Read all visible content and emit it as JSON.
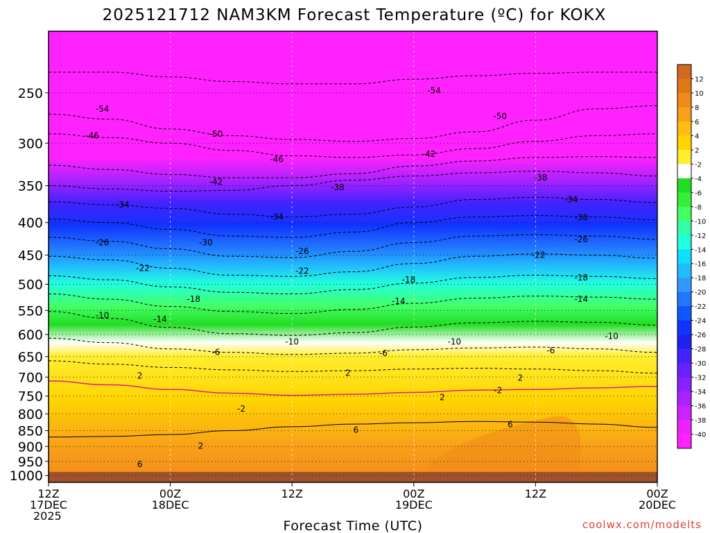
{
  "chart_data": {
    "type": "heatmap",
    "title": "2025121712 NAM3KM Forecast Temperature (ºC) for KOKX",
    "xlabel": "Forecast Time (UTC)",
    "ylabel": "",
    "y_scale": "pressure (hPa), top 200, bottom 1025",
    "x_range_hours": [
      0,
      60
    ],
    "y_ticks": [
      250,
      300,
      350,
      400,
      450,
      500,
      550,
      600,
      650,
      700,
      750,
      800,
      850,
      900,
      950,
      1000
    ],
    "x_ticks": [
      {
        "hour": 0,
        "lines": [
          "12Z",
          "17DEC",
          "2025"
        ]
      },
      {
        "hour": 12,
        "lines": [
          "00Z",
          "18DEC"
        ]
      },
      {
        "hour": 24,
        "lines": [
          "12Z"
        ]
      },
      {
        "hour": 36,
        "lines": [
          "00Z",
          "19DEC"
        ]
      },
      {
        "hour": 48,
        "lines": [
          "12Z"
        ]
      },
      {
        "hour": 60,
        "lines": [
          "00Z",
          "20DEC"
        ]
      }
    ],
    "colorbar": {
      "labels": [
        "12",
        "10",
        "8",
        "6",
        "4",
        "2",
        "-2",
        "-4",
        "-6",
        "-8",
        "-10",
        "-12",
        "-14",
        "-16",
        "-18",
        "-20",
        "-22",
        "-24",
        "-26",
        "-28",
        "-30",
        "-32",
        "-34",
        "-36",
        "-38",
        "-40"
      ],
      "colors": [
        "#d2691e",
        "#e07818",
        "#f08a1a",
        "#f8a01a",
        "#ffbc14",
        "#ffd400",
        "#ffee30",
        "#ffffff",
        "#22dd22",
        "#36ee36",
        "#44ff66",
        "#33ffaa",
        "#22ffdd",
        "#11ddff",
        "#22bbff",
        "#3399ff",
        "#2277ff",
        "#1155ff",
        "#1133ff",
        "#2222ee",
        "#4422ff",
        "#6622ff",
        "#8822ff",
        "#aa22ff",
        "#cc22ff",
        "#ee22ff",
        "#ff22ff"
      ]
    },
    "isotherms": [
      {
        "temp": -54,
        "pressures": [
          232,
          232,
          236,
          240,
          242,
          242,
          238,
          235,
          233,
          232,
          232
        ]
      },
      {
        "temp": -50,
        "pressures": [
          270,
          275,
          285,
          292,
          296,
          298,
          295,
          288,
          276,
          265,
          262
        ]
      },
      {
        "temp": -46,
        "pressures": [
          290,
          294,
          300,
          308,
          314,
          316,
          313,
          306,
          298,
          292,
          290
        ]
      },
      {
        "temp": -42,
        "pressures": [
          325,
          330,
          336,
          340,
          340,
          335,
          326,
          320,
          316,
          315,
          316
        ]
      },
      {
        "temp": -38,
        "pressures": [
          350,
          354,
          357,
          356,
          350,
          343,
          338,
          334,
          332,
          334,
          338
        ]
      },
      {
        "temp": -34,
        "pressures": [
          371,
          375,
          380,
          388,
          392,
          388,
          378,
          368,
          365,
          368,
          372
        ]
      },
      {
        "temp": -30,
        "pressures": [
          395,
          400,
          410,
          420,
          422,
          414,
          400,
          392,
          390,
          392,
          396
        ]
      },
      {
        "temp": -26,
        "pressures": [
          422,
          428,
          440,
          452,
          454,
          444,
          430,
          420,
          418,
          420,
          425
        ]
      },
      {
        "temp": -22,
        "pressures": [
          452,
          458,
          472,
          484,
          486,
          478,
          464,
          452,
          448,
          450,
          455
        ]
      },
      {
        "temp": -18,
        "pressures": [
          485,
          492,
          505,
          515,
          518,
          510,
          498,
          488,
          484,
          486,
          490
        ]
      },
      {
        "temp": -14,
        "pressures": [
          518,
          528,
          542,
          552,
          556,
          548,
          536,
          526,
          522,
          524,
          528
        ]
      },
      {
        "temp": -10,
        "pressures": [
          552,
          566,
          585,
          598,
          602,
          596,
          584,
          575,
          572,
          574,
          580
        ]
      },
      {
        "temp": -6,
        "pressures": [
          608,
          618,
          632,
          640,
          645,
          642,
          634,
          630,
          628,
          632,
          640
        ]
      },
      {
        "temp": -2,
        "pressures": [
          660,
          668,
          676,
          682,
          686,
          684,
          680,
          678,
          680,
          684,
          690
        ]
      },
      {
        "temp": 2,
        "pressures": [
          710,
          720,
          732,
          742,
          748,
          745,
          740,
          734,
          732,
          728,
          724
        ]
      },
      {
        "temp": 6,
        "pressures": [
          870,
          868,
          862,
          850,
          838,
          830,
          826,
          822,
          824,
          830,
          840
        ]
      }
    ],
    "contour_labels": [
      {
        "text": "-54",
        "hour": 5.3,
        "p": 265
      },
      {
        "text": "-54",
        "hour": 38,
        "p": 248
      },
      {
        "text": "-50",
        "hour": 16.5,
        "p": 290
      },
      {
        "text": "-50",
        "hour": 44.5,
        "p": 272
      },
      {
        "text": "-46",
        "hour": 4.3,
        "p": 292
      },
      {
        "text": "-46",
        "hour": 22.5,
        "p": 318
      },
      {
        "text": "-42",
        "hour": 37.5,
        "p": 312
      },
      {
        "text": "-42",
        "hour": 16.5,
        "p": 345
      },
      {
        "text": "-38",
        "hour": 28.5,
        "p": 352
      },
      {
        "text": "-38",
        "hour": 48.5,
        "p": 340
      },
      {
        "text": "-34",
        "hour": 7.3,
        "p": 375
      },
      {
        "text": "-34",
        "hour": 22.5,
        "p": 392
      },
      {
        "text": "-34",
        "hour": 51.5,
        "p": 368
      },
      {
        "text": "-30",
        "hour": 15.5,
        "p": 430
      },
      {
        "text": "-30",
        "hour": 52.5,
        "p": 393
      },
      {
        "text": "-26",
        "hour": 5.3,
        "p": 430
      },
      {
        "text": "-26",
        "hour": 25,
        "p": 444
      },
      {
        "text": "-26",
        "hour": 52.5,
        "p": 425
      },
      {
        "text": "-22",
        "hour": 9.3,
        "p": 472
      },
      {
        "text": "-22",
        "hour": 25,
        "p": 477
      },
      {
        "text": "-22",
        "hour": 48.3,
        "p": 450
      },
      {
        "text": "-18",
        "hour": 14.3,
        "p": 528
      },
      {
        "text": "-18",
        "hour": 35.5,
        "p": 492
      },
      {
        "text": "-18",
        "hour": 52.5,
        "p": 488
      },
      {
        "text": "-14",
        "hour": 11,
        "p": 568
      },
      {
        "text": "-14",
        "hour": 34.5,
        "p": 532
      },
      {
        "text": "-14",
        "hour": 52.5,
        "p": 528
      },
      {
        "text": "-10",
        "hour": 5.3,
        "p": 560
      },
      {
        "text": "-10",
        "hour": 24,
        "p": 616
      },
      {
        "text": "-10",
        "hour": 40,
        "p": 616
      },
      {
        "text": "-10",
        "hour": 55.5,
        "p": 604
      },
      {
        "text": "-6",
        "hour": 16.5,
        "p": 640
      },
      {
        "text": "-6",
        "hour": 33,
        "p": 642
      },
      {
        "text": "-6",
        "hour": 49.5,
        "p": 636
      },
      {
        "text": "2",
        "hour": 9,
        "p": 697
      },
      {
        "text": "2",
        "hour": 29.5,
        "p": 690
      },
      {
        "text": "2",
        "hour": 46.5,
        "p": 702
      },
      {
        "text": "-2",
        "hour": 44.3,
        "p": 735
      },
      {
        "text": "-2",
        "hour": 19,
        "p": 785
      },
      {
        "text": "2",
        "hour": 15,
        "p": 898
      },
      {
        "text": "2",
        "hour": 38.8,
        "p": 753
      },
      {
        "text": "6",
        "hour": 30.3,
        "p": 848
      },
      {
        "text": "6",
        "hour": 45.5,
        "p": 831
      },
      {
        "text": "6",
        "hour": 9,
        "p": 960
      }
    ]
  },
  "credit": "coolwx.com/modelts"
}
